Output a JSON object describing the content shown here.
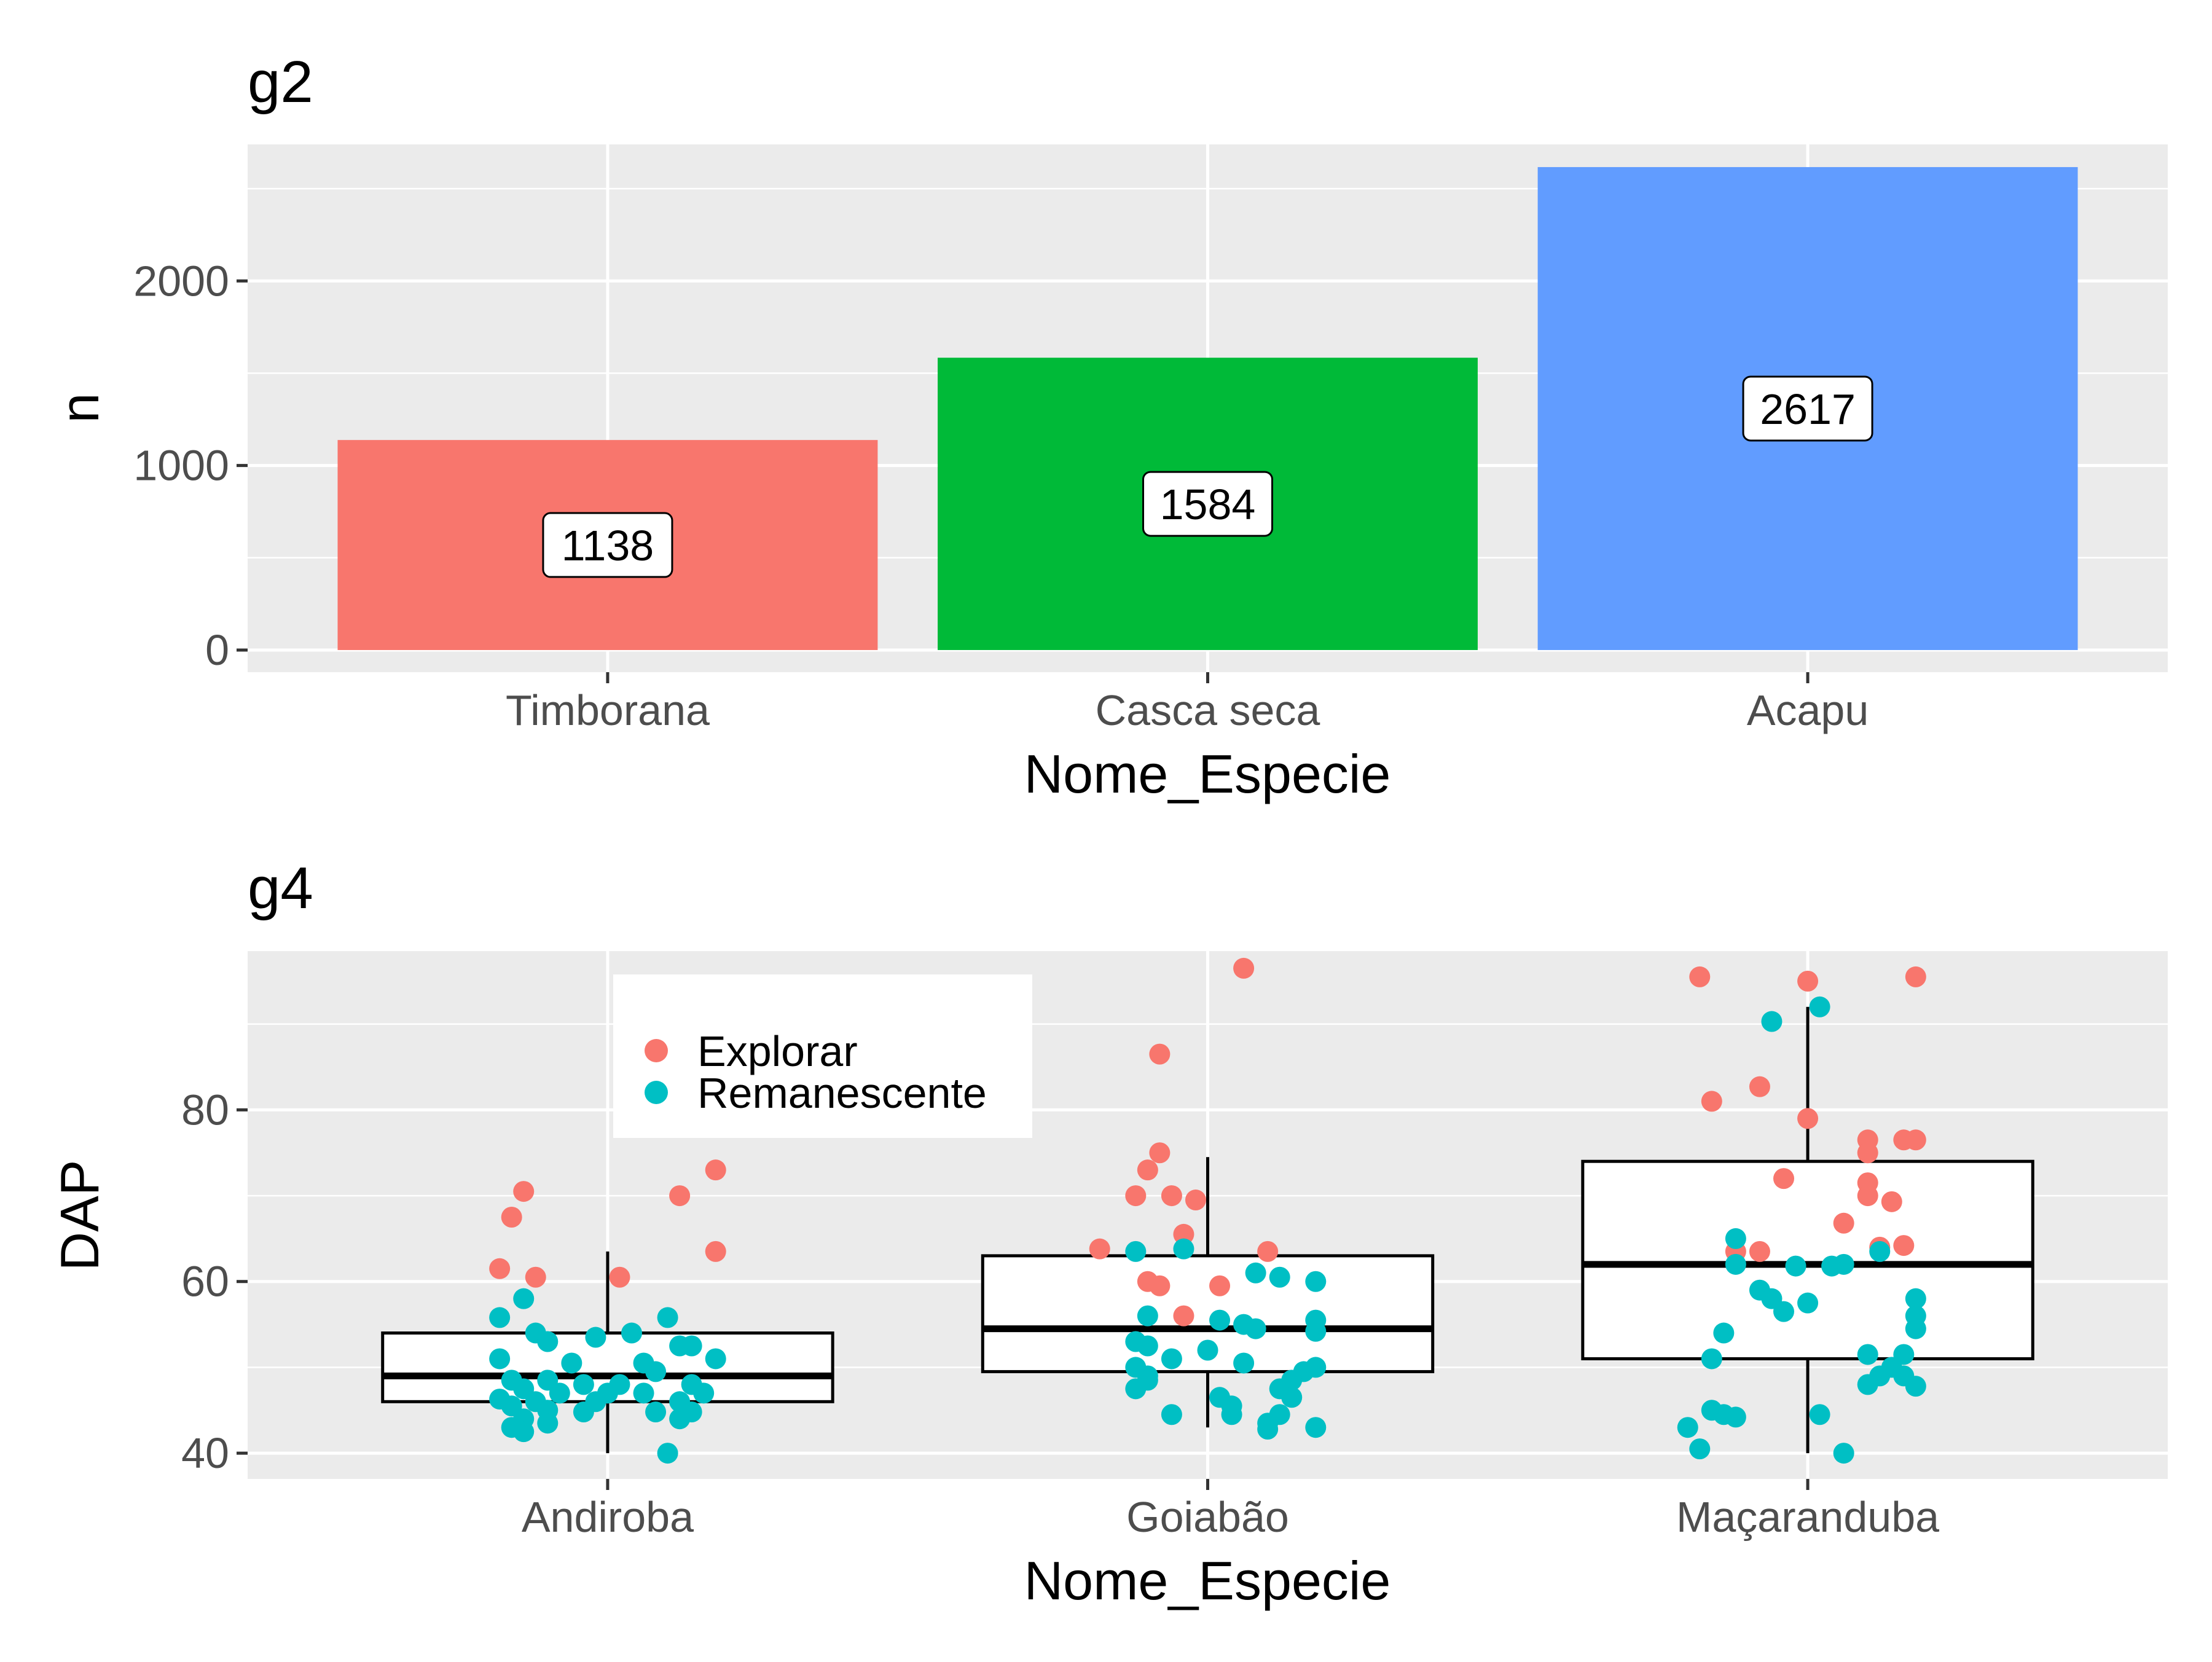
{
  "chart_data": [
    {
      "type": "bar",
      "title": "g2",
      "xlabel": "Nome_Especie",
      "ylabel": "n",
      "categories": [
        "Timborana",
        "Casca seca",
        "Acapu"
      ],
      "values": [
        1138,
        1584,
        2617
      ],
      "labels": [
        "1138",
        "1584",
        "2617"
      ],
      "colors": [
        "#F8766D",
        "#00BA38",
        "#619CFF"
      ],
      "ylim": [
        -120,
        2740
      ],
      "yticks": [
        0,
        1000,
        2000
      ],
      "ytick_labels": [
        "0",
        "1000",
        "2000"
      ],
      "grid": true,
      "background": "#EBEBEB"
    },
    {
      "type": "box",
      "title": "g4",
      "xlabel": "Nome_Especie",
      "ylabel": "DAP",
      "categories": [
        "Andiroba",
        "Goiabão",
        "Maçaranduba"
      ],
      "ylim": [
        37,
        98.5
      ],
      "yticks": [
        40,
        60,
        80
      ],
      "ytick_labels": [
        "40",
        "60",
        "80"
      ],
      "grid": true,
      "background": "#EBEBEB",
      "legend": {
        "position": "top-left",
        "entries": [
          {
            "label": "Explorar",
            "color": "#F8766D"
          },
          {
            "label": "Remanescente",
            "color": "#00BFC4"
          }
        ]
      },
      "boxes": [
        {
          "category": "Andiroba",
          "min": 40,
          "q1": 46,
          "median": 49,
          "q3": 54,
          "max": 63.5
        },
        {
          "category": "Goiabão",
          "min": 43,
          "q1": 49.5,
          "median": 54.5,
          "q3": 63,
          "max": 74.5
        },
        {
          "category": "Maçaranduba",
          "min": 40,
          "q1": 51,
          "median": 62,
          "q3": 74,
          "max": 92
        }
      ],
      "series": [
        {
          "name": "Explorar",
          "points": [
            [
              "Andiroba",
              -0.09,
              61.5
            ],
            [
              "Andiroba",
              -0.07,
              70.5
            ],
            [
              "Andiroba",
              -0.08,
              67.5
            ],
            [
              "Andiroba",
              -0.06,
              60.5
            ],
            [
              "Andiroba",
              0.01,
              60.5
            ],
            [
              "Andiroba",
              0.09,
              73
            ],
            [
              "Andiroba",
              0.06,
              70
            ],
            [
              "Andiroba",
              0.09,
              63.5
            ],
            [
              "Goiabão",
              0.03,
              96.5
            ],
            [
              "Goiabão",
              -0.04,
              86.5
            ],
            [
              "Goiabão",
              -0.04,
              75
            ],
            [
              "Goiabão",
              -0.05,
              73
            ],
            [
              "Goiabão",
              -0.06,
              70
            ],
            [
              "Goiabão",
              -0.03,
              70
            ],
            [
              "Goiabão",
              -0.01,
              69.5
            ],
            [
              "Goiabão",
              -0.02,
              65.5
            ],
            [
              "Goiabão",
              -0.09,
              63.8
            ],
            [
              "Goiabão",
              0.05,
              63.5
            ],
            [
              "Goiabão",
              -0.05,
              60
            ],
            [
              "Goiabão",
              -0.04,
              59.5
            ],
            [
              "Goiabão",
              0.01,
              59.5
            ],
            [
              "Goiabão",
              -0.02,
              56
            ],
            [
              "Maçaranduba",
              -0.09,
              95.5
            ],
            [
              "Maçaranduba",
              0.0,
              95
            ],
            [
              "Maçaranduba",
              0.09,
              95.5
            ],
            [
              "Maçaranduba",
              -0.08,
              81
            ],
            [
              "Maçaranduba",
              -0.04,
              82.7
            ],
            [
              "Maçaranduba",
              0.0,
              79
            ],
            [
              "Maçaranduba",
              0.05,
              76.5
            ],
            [
              "Maçaranduba",
              0.08,
              76.5
            ],
            [
              "Maçaranduba",
              0.09,
              76.5
            ],
            [
              "Maçaranduba",
              0.05,
              75
            ],
            [
              "Maçaranduba",
              0.05,
              71.5
            ],
            [
              "Maçaranduba",
              -0.02,
              72
            ],
            [
              "Maçaranduba",
              0.05,
              70
            ],
            [
              "Maçaranduba",
              0.07,
              69.3
            ],
            [
              "Maçaranduba",
              0.03,
              66.8
            ],
            [
              "Maçaranduba",
              0.06,
              64
            ],
            [
              "Maçaranduba",
              0.08,
              64.2
            ],
            [
              "Maçaranduba",
              -0.06,
              63.5
            ],
            [
              "Maçaranduba",
              -0.04,
              63.5
            ]
          ]
        },
        {
          "name": "Remanescente",
          "points": [
            [
              "Andiroba",
              -0.07,
              58
            ],
            [
              "Andiroba",
              -0.09,
              55.8
            ],
            [
              "Andiroba",
              -0.06,
              54
            ],
            [
              "Andiroba",
              -0.05,
              53
            ],
            [
              "Andiroba",
              -0.01,
              53.5
            ],
            [
              "Andiroba",
              0.02,
              54
            ],
            [
              "Andiroba",
              0.05,
              55.8
            ],
            [
              "Andiroba",
              0.06,
              52.5
            ],
            [
              "Andiroba",
              0.07,
              52.5
            ],
            [
              "Andiroba",
              0.09,
              51
            ],
            [
              "Andiroba",
              -0.09,
              51
            ],
            [
              "Andiroba",
              -0.03,
              50.5
            ],
            [
              "Andiroba",
              0.03,
              50.5
            ],
            [
              "Andiroba",
              0.04,
              49.5
            ],
            [
              "Andiroba",
              -0.08,
              48.5
            ],
            [
              "Andiroba",
              -0.05,
              48.5
            ],
            [
              "Andiroba",
              -0.02,
              48
            ],
            [
              "Andiroba",
              0.01,
              48
            ],
            [
              "Andiroba",
              0.07,
              48
            ],
            [
              "Andiroba",
              -0.07,
              47.5
            ],
            [
              "Andiroba",
              -0.04,
              47
            ],
            [
              "Andiroba",
              0.0,
              47
            ],
            [
              "Andiroba",
              0.03,
              47
            ],
            [
              "Andiroba",
              0.08,
              47
            ],
            [
              "Andiroba",
              -0.09,
              46.3
            ],
            [
              "Andiroba",
              -0.06,
              46
            ],
            [
              "Andiroba",
              -0.01,
              46
            ],
            [
              "Andiroba",
              0.06,
              46
            ],
            [
              "Andiroba",
              -0.08,
              45.5
            ],
            [
              "Andiroba",
              -0.05,
              45
            ],
            [
              "Andiroba",
              -0.02,
              44.8
            ],
            [
              "Andiroba",
              0.04,
              44.8
            ],
            [
              "Andiroba",
              0.07,
              44.8
            ],
            [
              "Andiroba",
              -0.07,
              44
            ],
            [
              "Andiroba",
              -0.05,
              43.5
            ],
            [
              "Andiroba",
              0.06,
              44
            ],
            [
              "Andiroba",
              -0.08,
              43
            ],
            [
              "Andiroba",
              -0.07,
              42.5
            ],
            [
              "Andiroba",
              0.05,
              40
            ],
            [
              "Goiabão",
              -0.06,
              63.5
            ],
            [
              "Goiabão",
              -0.02,
              63.8
            ],
            [
              "Goiabão",
              0.04,
              61
            ],
            [
              "Goiabão",
              0.06,
              60.5
            ],
            [
              "Goiabão",
              0.09,
              60
            ],
            [
              "Goiabão",
              -0.05,
              56
            ],
            [
              "Goiabão",
              0.01,
              55.5
            ],
            [
              "Goiabão",
              0.03,
              55
            ],
            [
              "Goiabão",
              0.04,
              54.5
            ],
            [
              "Goiabão",
              0.09,
              55.5
            ],
            [
              "Goiabão",
              0.09,
              54.2
            ],
            [
              "Goiabão",
              -0.06,
              53
            ],
            [
              "Goiabão",
              -0.05,
              52.5
            ],
            [
              "Goiabão",
              -0.03,
              51
            ],
            [
              "Goiabão",
              0.0,
              52
            ],
            [
              "Goiabão",
              0.03,
              50.5
            ],
            [
              "Goiabão",
              -0.06,
              50
            ],
            [
              "Goiabão",
              -0.05,
              49
            ],
            [
              "Goiabão",
              0.09,
              50
            ],
            [
              "Goiabão",
              0.08,
              49.5
            ],
            [
              "Goiabão",
              -0.05,
              48.5
            ],
            [
              "Goiabão",
              0.07,
              48.5
            ],
            [
              "Goiabão",
              -0.06,
              47.5
            ],
            [
              "Goiabão",
              0.06,
              47.5
            ],
            [
              "Goiabão",
              0.01,
              46.5
            ],
            [
              "Goiabão",
              0.02,
              45.5
            ],
            [
              "Goiabão",
              0.07,
              46.5
            ],
            [
              "Goiabão",
              -0.03,
              44.5
            ],
            [
              "Goiabão",
              0.02,
              44.5
            ],
            [
              "Goiabão",
              0.06,
              44.5
            ],
            [
              "Goiabão",
              0.05,
              43.5
            ],
            [
              "Goiabão",
              0.09,
              43
            ],
            [
              "Goiabão",
              0.05,
              42.8
            ],
            [
              "Maçaranduba",
              0.01,
              92
            ],
            [
              "Maçaranduba",
              -0.03,
              90.3
            ],
            [
              "Maçaranduba",
              -0.06,
              65
            ],
            [
              "Maçaranduba",
              -0.06,
              62
            ],
            [
              "Maçaranduba",
              -0.01,
              61.8
            ],
            [
              "Maçaranduba",
              0.02,
              61.8
            ],
            [
              "Maçaranduba",
              0.03,
              62
            ],
            [
              "Maçaranduba",
              0.06,
              63.5
            ],
            [
              "Maçaranduba",
              -0.04,
              59
            ],
            [
              "Maçaranduba",
              -0.03,
              58
            ],
            [
              "Maçaranduba",
              0.0,
              57.5
            ],
            [
              "Maçaranduba",
              -0.02,
              56.5
            ],
            [
              "Maçaranduba",
              0.09,
              58
            ],
            [
              "Maçaranduba",
              0.09,
              56
            ],
            [
              "Maçaranduba",
              0.09,
              54.5
            ],
            [
              "Maçaranduba",
              -0.07,
              54
            ],
            [
              "Maçaranduba",
              0.05,
              51.5
            ],
            [
              "Maçaranduba",
              0.08,
              51.5
            ],
            [
              "Maçaranduba",
              -0.08,
              51
            ],
            [
              "Maçaranduba",
              0.07,
              50
            ],
            [
              "Maçaranduba",
              0.06,
              49
            ],
            [
              "Maçaranduba",
              0.08,
              49
            ],
            [
              "Maçaranduba",
              0.05,
              48
            ],
            [
              "Maçaranduba",
              0.09,
              47.8
            ],
            [
              "Maçaranduba",
              -0.08,
              45
            ],
            [
              "Maçaranduba",
              -0.07,
              44.5
            ],
            [
              "Maçaranduba",
              0.01,
              44.5
            ],
            [
              "Maçaranduba",
              -0.06,
              44.2
            ],
            [
              "Maçaranduba",
              -0.1,
              43
            ],
            [
              "Maçaranduba",
              -0.09,
              40.5
            ],
            [
              "Maçaranduba",
              0.03,
              40
            ]
          ]
        }
      ]
    }
  ]
}
